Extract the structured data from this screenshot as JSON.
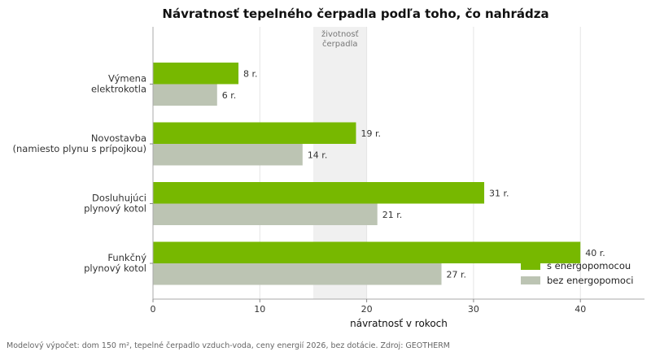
{
  "chart_data": {
    "type": "bar",
    "orientation": "horizontal",
    "title": "Návratnosť tepelného čerpadla podľa toho, čo nahrádza",
    "categories": [
      [
        "Výmena",
        "elektrokotla"
      ],
      [
        "Novostavba",
        "(namiesto plynu s prípojkou)"
      ],
      [
        "Dosluhujúci",
        "plynový kotol"
      ],
      [
        "Funkčný",
        "plynový kotol"
      ]
    ],
    "series": [
      {
        "name": "s energopomocou",
        "values": [
          8,
          19,
          31,
          40
        ],
        "color": "#77b800"
      },
      {
        "name": "bez energopomoci",
        "values": [
          6,
          14,
          21,
          27
        ],
        "color": "#bcc4b3"
      }
    ],
    "value_suffix": " r.",
    "xlabel": "návratnosť v rokoch",
    "ylabel": "",
    "xlim": [
      0,
      46
    ],
    "xticks": [
      0,
      10,
      20,
      30,
      40
    ],
    "grid": "vertical",
    "legend_position": "bottom-right",
    "shaded_band": {
      "range": [
        15,
        20
      ],
      "label": [
        "životnosť",
        "čerpadla"
      ],
      "color": "#f0f0f0"
    }
  },
  "footer": "Modelový výpočet: dom 150 m², tepelné čerpadlo vzduch-voda, ceny energií 2026, bez dotácie. Zdroj: GEOTHERM"
}
